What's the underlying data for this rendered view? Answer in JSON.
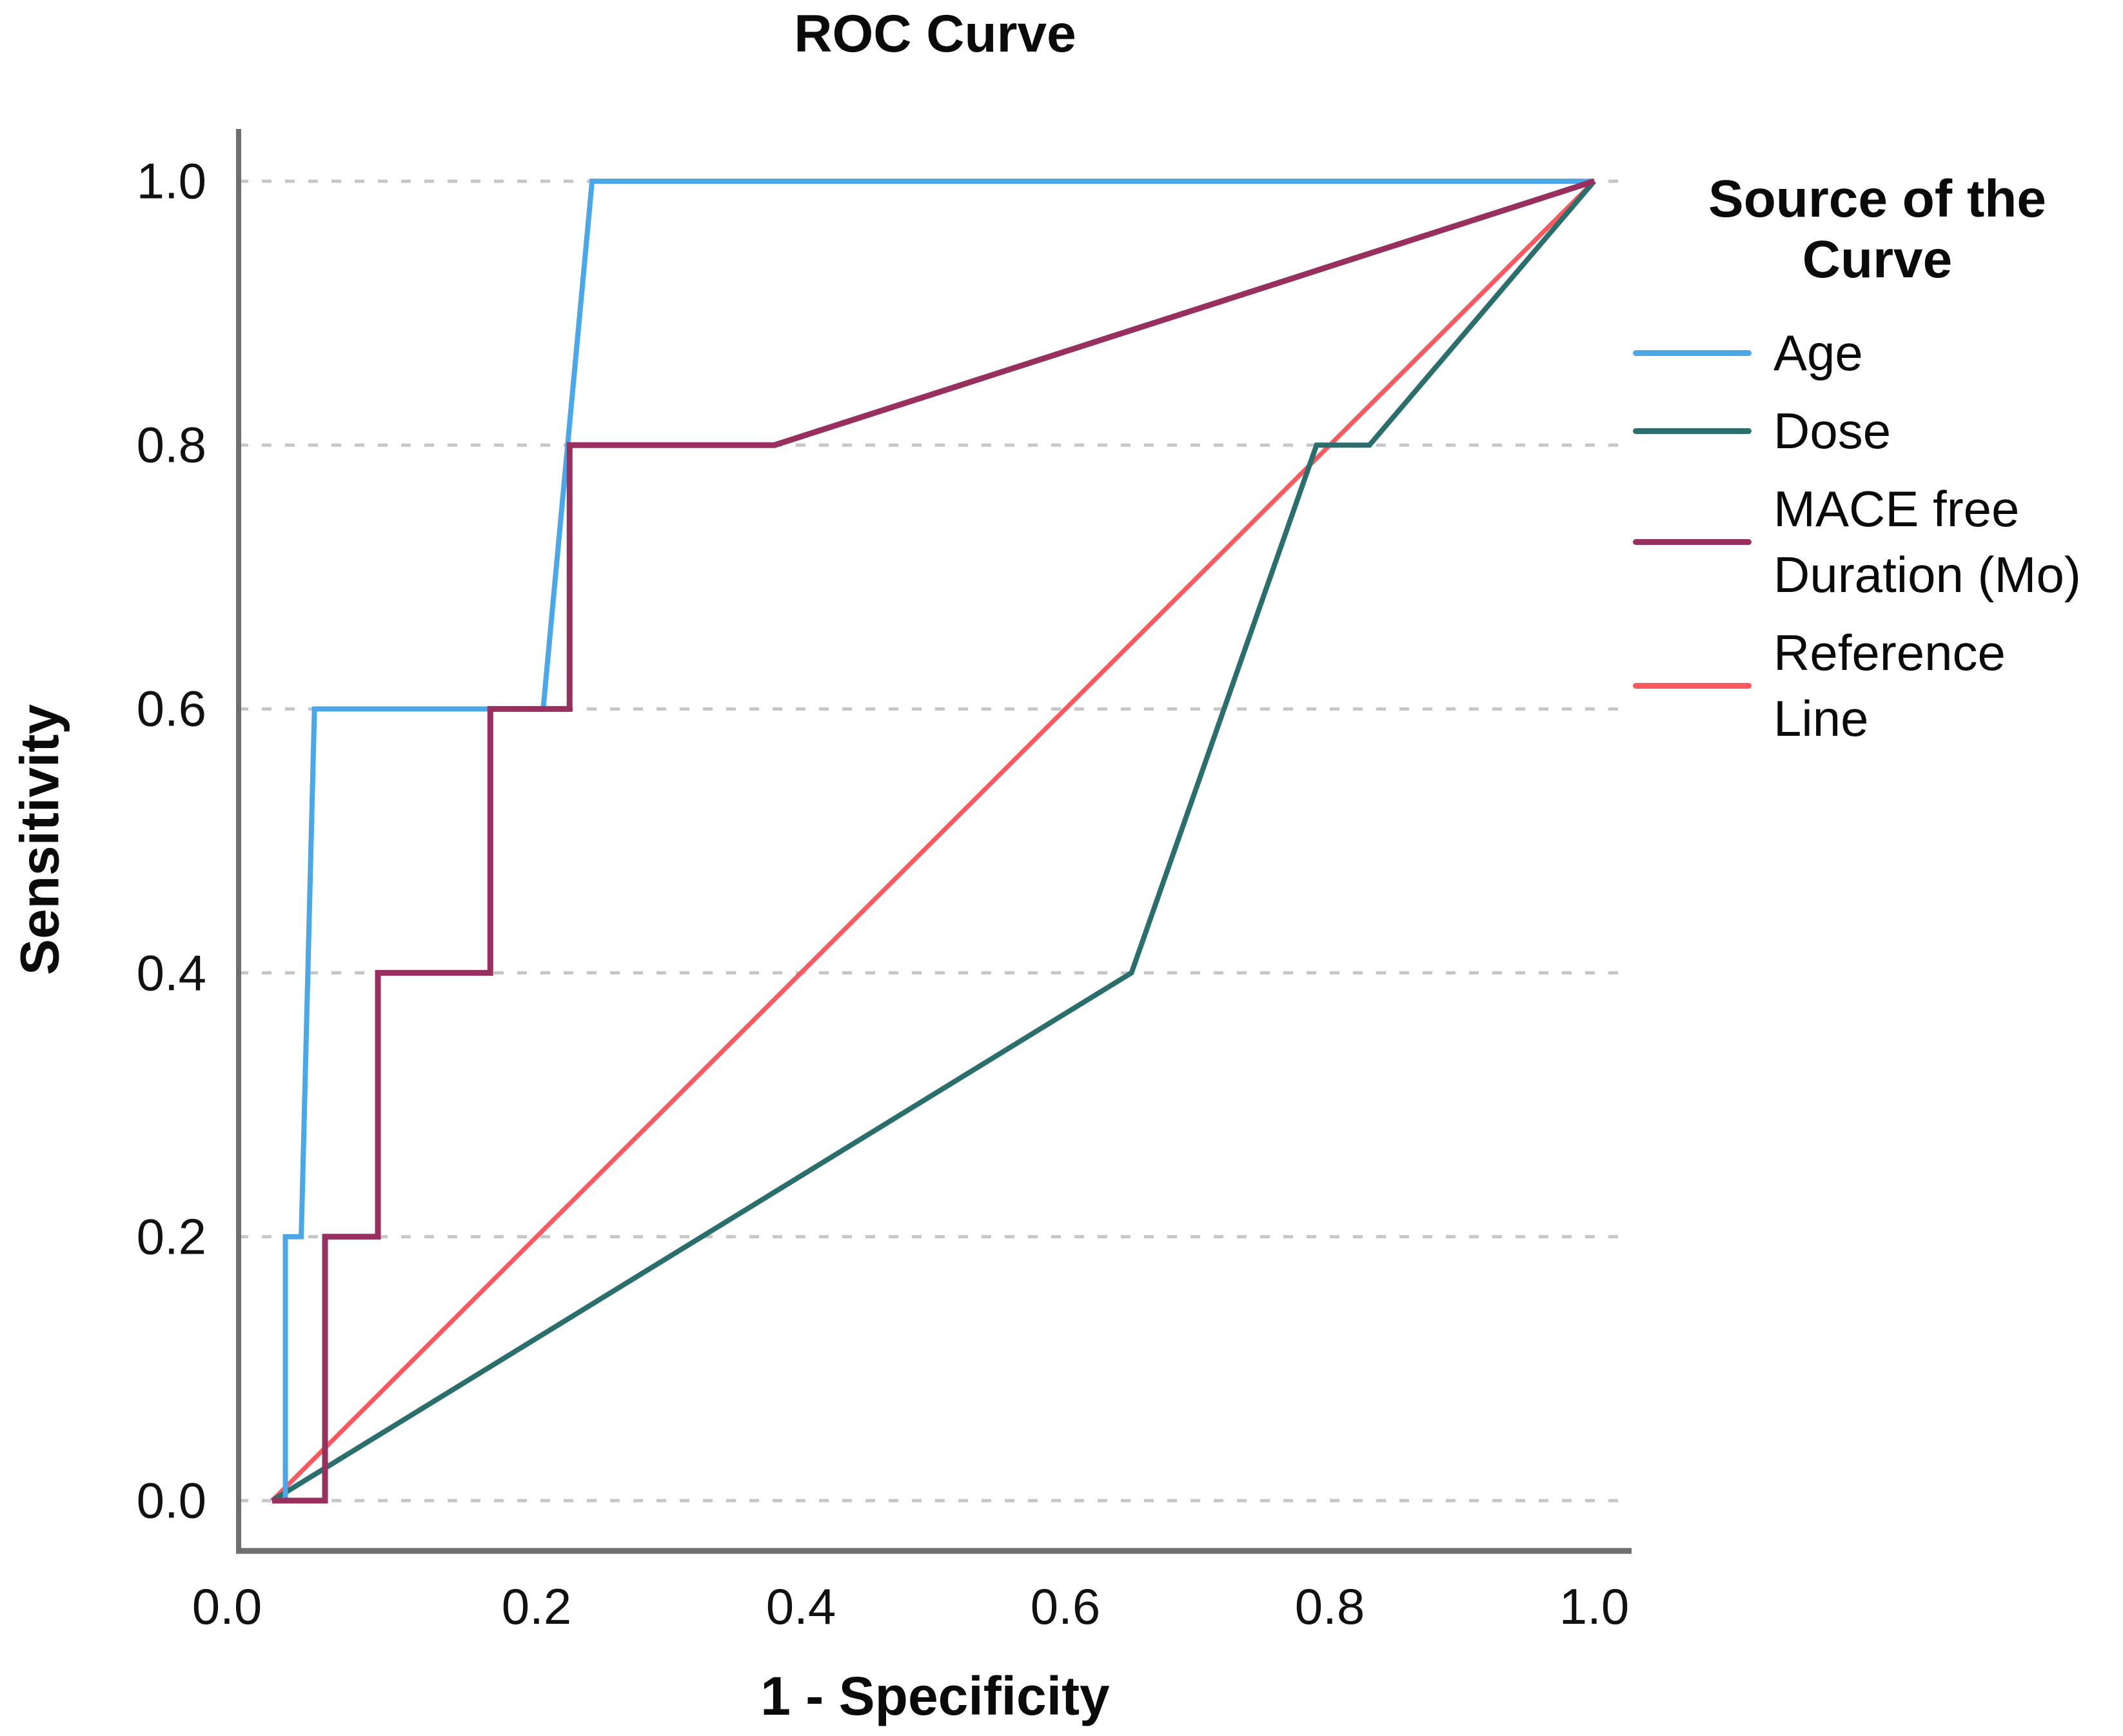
{
  "title": "ROC Curve",
  "axes": {
    "x": {
      "title": "1 - Specificity",
      "ticks": [
        "0.0",
        "0.2",
        "0.4",
        "0.6",
        "0.8",
        "1.0"
      ]
    },
    "y": {
      "title": "Sensitivity",
      "ticks": [
        "0.0",
        "0.2",
        "0.4",
        "0.6",
        "0.8",
        "1.0"
      ]
    }
  },
  "legend": {
    "title": "Source of the Curve",
    "items": [
      {
        "label": "Age",
        "color": "#4BA7E8"
      },
      {
        "label": "Dose",
        "color": "#2A6F6B"
      },
      {
        "label": "MACE free Duration (Mo)",
        "color": "#97305F"
      },
      {
        "label": "Reference Line",
        "color": "#FA5A5F"
      }
    ]
  },
  "chart_data": {
    "type": "line",
    "title": "ROC Curve",
    "xlabel": "1 - Specificity",
    "ylabel": "Sensitivity",
    "xlim": [
      0,
      1
    ],
    "ylim": [
      0,
      1
    ],
    "grid": "horizontal-dashed",
    "gridline_values": [
      0.0,
      0.2,
      0.4,
      0.6,
      0.8,
      1.0
    ],
    "legend_position": "right",
    "series": [
      {
        "id": "age",
        "name": "Age",
        "color": "#4BA7E8",
        "width": 8,
        "points": [
          [
            0,
            0
          ],
          [
            0.01,
            0
          ],
          [
            0.01,
            0.2
          ],
          [
            0.022,
            0.2
          ],
          [
            0.032,
            0.6
          ],
          [
            0.205,
            0.6
          ],
          [
            0.242,
            1.0
          ],
          [
            1,
            1
          ]
        ]
      },
      {
        "id": "dose",
        "name": "Dose",
        "color": "#2A6F6B",
        "width": 8,
        "points": [
          [
            0,
            0
          ],
          [
            0.65,
            0.4
          ],
          [
            0.79,
            0.8
          ],
          [
            0.83,
            0.8
          ],
          [
            1,
            1
          ]
        ]
      },
      {
        "id": "mace-free-duration",
        "name": "MACE free Duration (Mo)",
        "color": "#97305F",
        "width": 9,
        "points": [
          [
            0,
            0
          ],
          [
            0.04,
            0
          ],
          [
            0.04,
            0.2
          ],
          [
            0.08,
            0.2
          ],
          [
            0.08,
            0.4
          ],
          [
            0.165,
            0.4
          ],
          [
            0.165,
            0.6
          ],
          [
            0.225,
            0.6
          ],
          [
            0.225,
            0.8
          ],
          [
            0.38,
            0.8
          ],
          [
            1,
            1
          ]
        ]
      },
      {
        "id": "reference-line",
        "name": "Reference Line",
        "color": "#FA5A5F",
        "width": 7,
        "points": [
          [
            0,
            0
          ],
          [
            1,
            1
          ]
        ]
      }
    ],
    "draw_order": [
      "Reference Line",
      "Dose",
      "Age",
      "MACE free Duration (Mo)"
    ]
  }
}
